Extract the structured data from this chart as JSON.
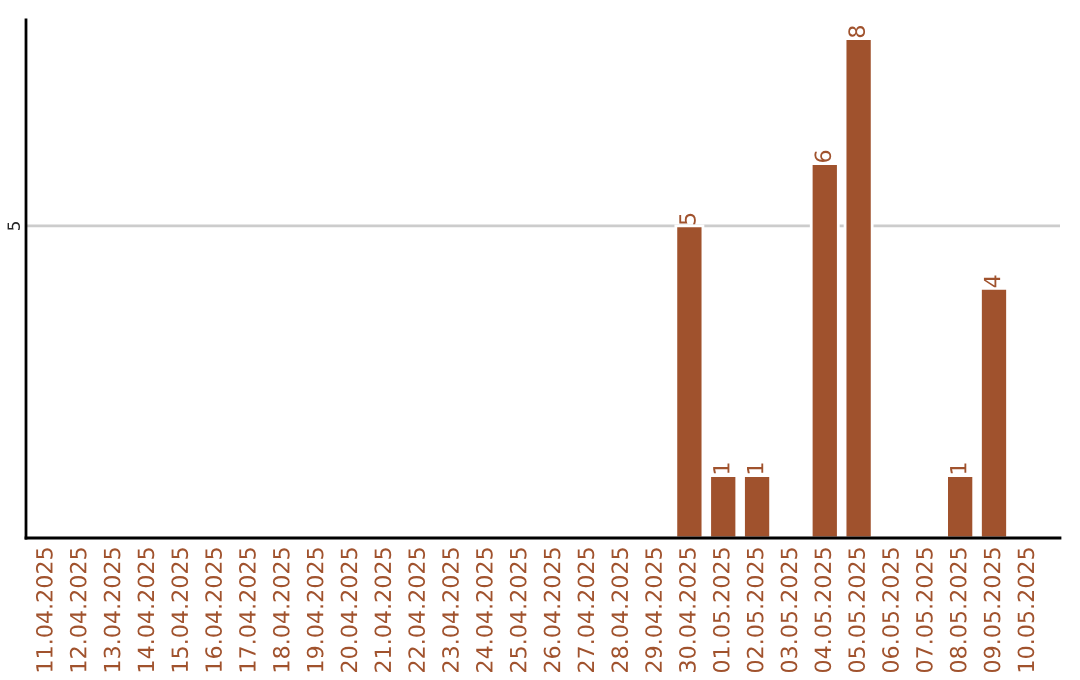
{
  "chart_data": {
    "type": "bar",
    "categories": [
      "11.04.2025",
      "12.04.2025",
      "13.04.2025",
      "14.04.2025",
      "15.04.2025",
      "16.04.2025",
      "17.04.2025",
      "18.04.2025",
      "19.04.2025",
      "20.04.2025",
      "21.04.2025",
      "22.04.2025",
      "23.04.2025",
      "24.04.2025",
      "25.04.2025",
      "26.04.2025",
      "27.04.2025",
      "28.04.2025",
      "29.04.2025",
      "30.04.2025",
      "01.05.2025",
      "02.05.2025",
      "03.05.2025",
      "04.05.2025",
      "05.05.2025",
      "06.05.2025",
      "07.05.2025",
      "08.05.2025",
      "09.05.2025",
      "10.05.2025"
    ],
    "values": [
      null,
      null,
      null,
      null,
      null,
      null,
      null,
      null,
      null,
      null,
      null,
      null,
      null,
      null,
      null,
      null,
      null,
      null,
      null,
      5,
      1,
      1,
      null,
      6,
      8,
      null,
      null,
      1,
      4,
      null
    ],
    "color": "#a0522d",
    "ylim": [
      0,
      8.3
    ],
    "yticks": [
      5
    ],
    "grid": "y",
    "data_labels": true
  }
}
